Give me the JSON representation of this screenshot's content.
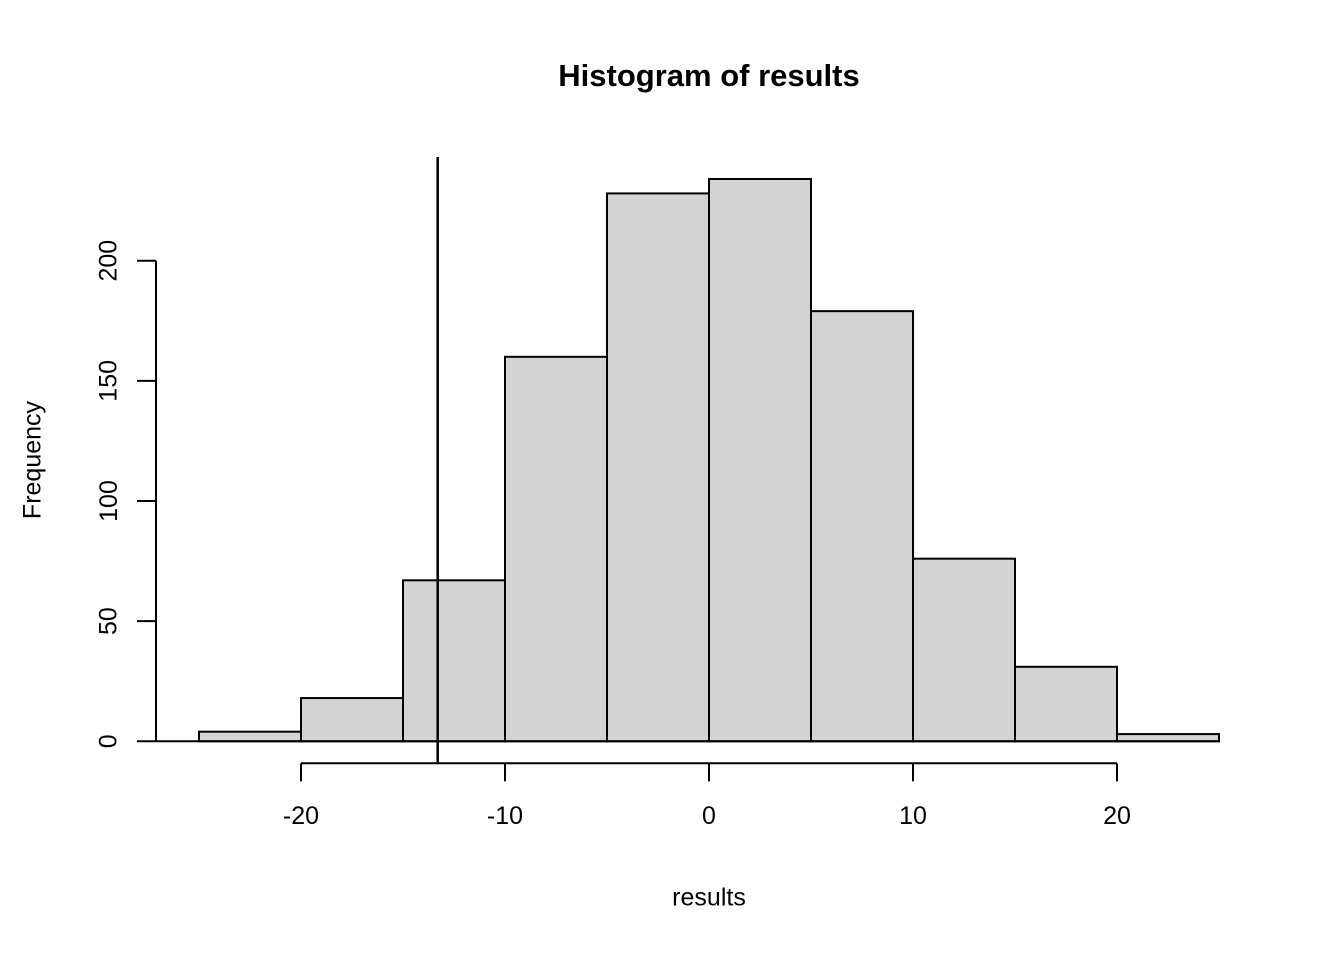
{
  "chart_data": {
    "type": "bar",
    "variant": "histogram",
    "title": "Histogram of results",
    "xlabel": "results",
    "ylabel": "Frequency",
    "breaks": [
      -25,
      -20,
      -15,
      -10,
      -5,
      0,
      5,
      10,
      15,
      20,
      25
    ],
    "counts": [
      4,
      18,
      67,
      160,
      228,
      234,
      179,
      76,
      31,
      3
    ],
    "x_ticks": [
      "-20",
      "-10",
      "0",
      "10",
      "20"
    ],
    "x_tick_values": [
      -20,
      -10,
      0,
      10,
      20
    ],
    "y_ticks": [
      "0",
      "50",
      "100",
      "150",
      "200"
    ],
    "y_tick_values": [
      0,
      50,
      100,
      150,
      200
    ],
    "xlim": [
      -25,
      25
    ],
    "ylim": [
      0,
      235
    ],
    "vline_x": -13.3,
    "grid": "off",
    "legend": "none",
    "bar_fill": "#d3d3d3",
    "bar_border": "#000000",
    "axis_color": "#000000",
    "background": "#ffffff"
  }
}
